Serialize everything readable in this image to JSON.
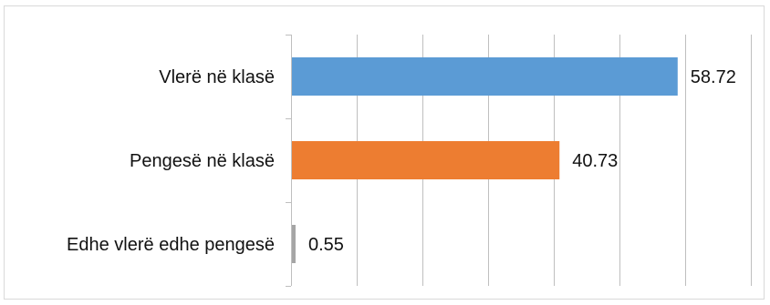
{
  "chart_data": {
    "type": "bar",
    "orientation": "horizontal",
    "categories": [
      "Vlerë në klasë",
      "Pengesë në klasë",
      "Edhe vlerë edhe pengesë"
    ],
    "values": [
      58.72,
      40.73,
      0.55
    ],
    "value_labels": [
      "58.72",
      "40.73",
      "0.55"
    ],
    "colors": [
      "#5B9BD5",
      "#ED7D31",
      "#A5A5A5"
    ],
    "xlim": [
      0,
      70
    ],
    "grid": true,
    "legend": "none"
  }
}
